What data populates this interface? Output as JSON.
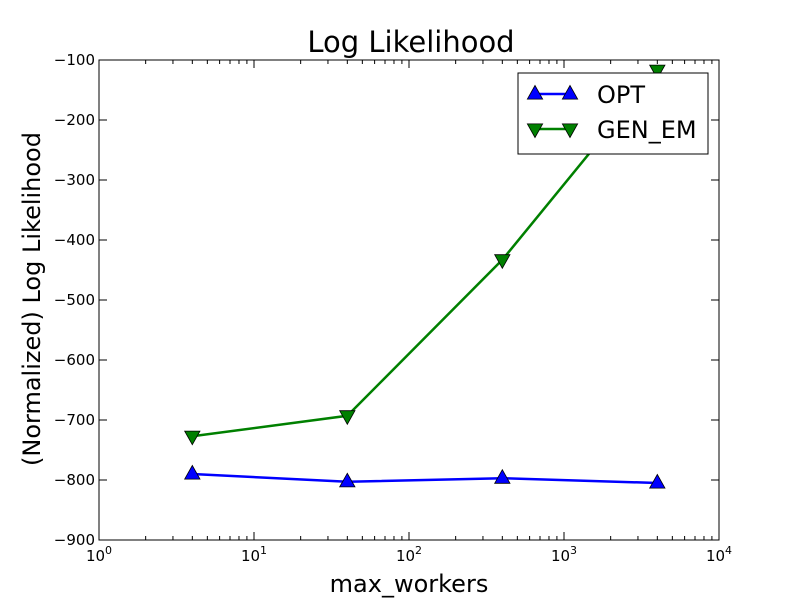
{
  "chart_data": {
    "type": "line",
    "title": "Log Likelihood",
    "xlabel": "max_workers",
    "ylabel": "(Normalized) Log Likelihood",
    "x_scale": "log",
    "xlim": [
      1,
      10000
    ],
    "ylim": [
      -900,
      -100
    ],
    "x_ticks": [
      1,
      10,
      100,
      1000,
      10000
    ],
    "x_tick_labels": [
      {
        "base": "10",
        "exp": "0"
      },
      {
        "base": "10",
        "exp": "1"
      },
      {
        "base": "10",
        "exp": "2"
      },
      {
        "base": "10",
        "exp": "3"
      },
      {
        "base": "10",
        "exp": "4"
      }
    ],
    "y_ticks": [
      -900,
      -800,
      -700,
      -600,
      -500,
      -400,
      -300,
      -200,
      -100
    ],
    "y_tick_labels": [
      "−900",
      "−800",
      "−700",
      "−600",
      "−500",
      "−400",
      "−300",
      "−200",
      "−100"
    ],
    "grid": false,
    "legend_position": "upper-right",
    "series": [
      {
        "name": "OPT",
        "color": "#0000ff",
        "marker": "triangle-up",
        "x": [
          4,
          40,
          400,
          4000
        ],
        "y": [
          -790,
          -803,
          -797,
          -805
        ]
      },
      {
        "name": "GEN_EM",
        "color": "#008000",
        "marker": "triangle-down",
        "x": [
          4,
          40,
          400,
          4000
        ],
        "y": [
          -727,
          -693,
          -433,
          -117
        ]
      }
    ]
  }
}
